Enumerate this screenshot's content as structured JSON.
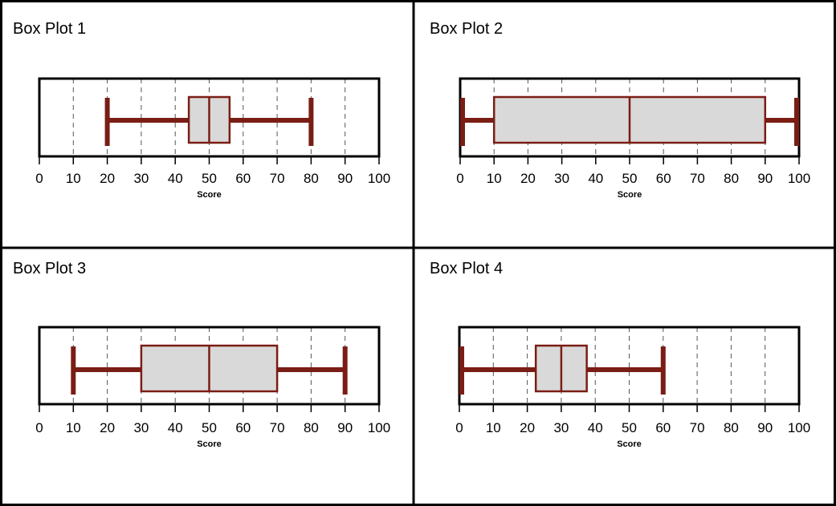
{
  "colors": {
    "whisker": "#7a1d14",
    "box_fill": "#d9d9d9",
    "box_stroke": "#7a1d14",
    "frame": "#000000",
    "grid": "#555555"
  },
  "chart_data": [
    {
      "type": "box",
      "title": "Box Plot 1",
      "xlabel": "Score",
      "xlim": [
        0,
        100
      ],
      "xticks": [
        "0",
        "10",
        "20",
        "30",
        "40",
        "50",
        "60",
        "70",
        "80",
        "90",
        "100"
      ],
      "grid": "vertical dashed",
      "stats": {
        "min": 20,
        "q1": 44,
        "median": 50,
        "q3": 56,
        "max": 80
      }
    },
    {
      "type": "box",
      "title": "Box Plot 2",
      "xlabel": "Score",
      "xlim": [
        0,
        100
      ],
      "xticks": [
        "0",
        "10",
        "20",
        "30",
        "40",
        "50",
        "60",
        "70",
        "80",
        "90",
        "100"
      ],
      "grid": "vertical dashed",
      "stats": {
        "min": 0,
        "q1": 10,
        "median": 50,
        "q3": 90,
        "max": 100
      }
    },
    {
      "type": "box",
      "title": "Box Plot  3",
      "xlabel": "Score",
      "xlim": [
        0,
        100
      ],
      "xticks": [
        "0",
        "10",
        "20",
        "30",
        "40",
        "50",
        "60",
        "70",
        "80",
        "90",
        "100"
      ],
      "grid": "vertical dashed",
      "stats": {
        "min": 10,
        "q1": 30,
        "median": 50,
        "q3": 70,
        "max": 90
      }
    },
    {
      "type": "box",
      "title": "Box Plot 4",
      "xlabel": "Score",
      "xlim": [
        0,
        100
      ],
      "xticks": [
        "0",
        "10",
        "20",
        "30",
        "40",
        "50",
        "60",
        "70",
        "80",
        "90",
        "100"
      ],
      "grid": "vertical dashed",
      "stats": {
        "min": 0,
        "q1": 22.5,
        "median": 30,
        "q3": 37.5,
        "max": 60
      }
    }
  ]
}
